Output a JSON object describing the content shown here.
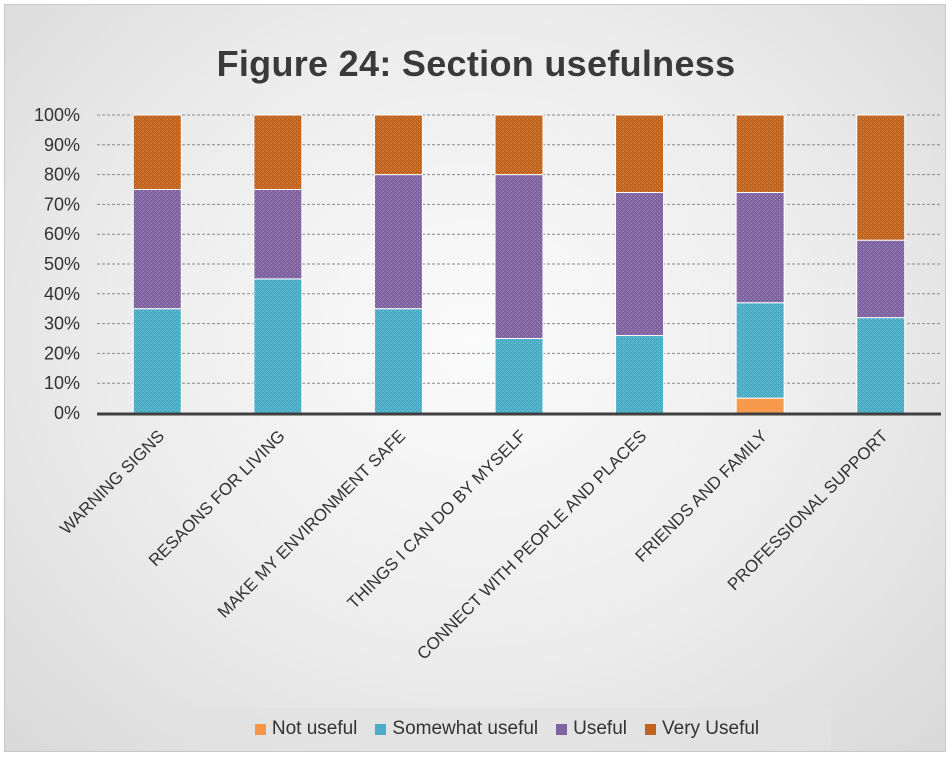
{
  "chart_data": {
    "type": "bar",
    "stacked": true,
    "percent_stacked": true,
    "title": "Figure 24: Section usefulness",
    "xlabel": "",
    "ylabel": "",
    "ylim": [
      0,
      100
    ],
    "ytick_labels": [
      "0%",
      "10%",
      "20%",
      "30%",
      "40%",
      "50%",
      "60%",
      "70%",
      "80%",
      "90%",
      "100%"
    ],
    "categories": [
      "WARNING SIGNS",
      "RESAONS FOR LIVING",
      "MAKE MY ENVIRONMENT SAFE",
      "THINGS I CAN DO BY MYSELF",
      "CONNECT WITH PEOPLE AND PLACES",
      "FRIENDS AND FAMILY",
      "PROFESSIONAL SUPPORT"
    ],
    "series": [
      {
        "name": "Not useful",
        "color": "#f79646",
        "values": [
          0,
          0,
          0,
          0,
          0,
          5,
          0
        ]
      },
      {
        "name": "Somewhat useful",
        "color": "#4bacc6",
        "values": [
          35,
          45,
          35,
          25,
          26,
          32,
          32
        ]
      },
      {
        "name": "Useful",
        "color": "#8064a2",
        "values": [
          40,
          30,
          45,
          55,
          48,
          37,
          26
        ]
      },
      {
        "name": "Very Useful",
        "color": "#c0641e",
        "values": [
          25,
          25,
          20,
          20,
          26,
          26,
          42
        ]
      }
    ],
    "grid": true,
    "legend_position": "bottom"
  }
}
